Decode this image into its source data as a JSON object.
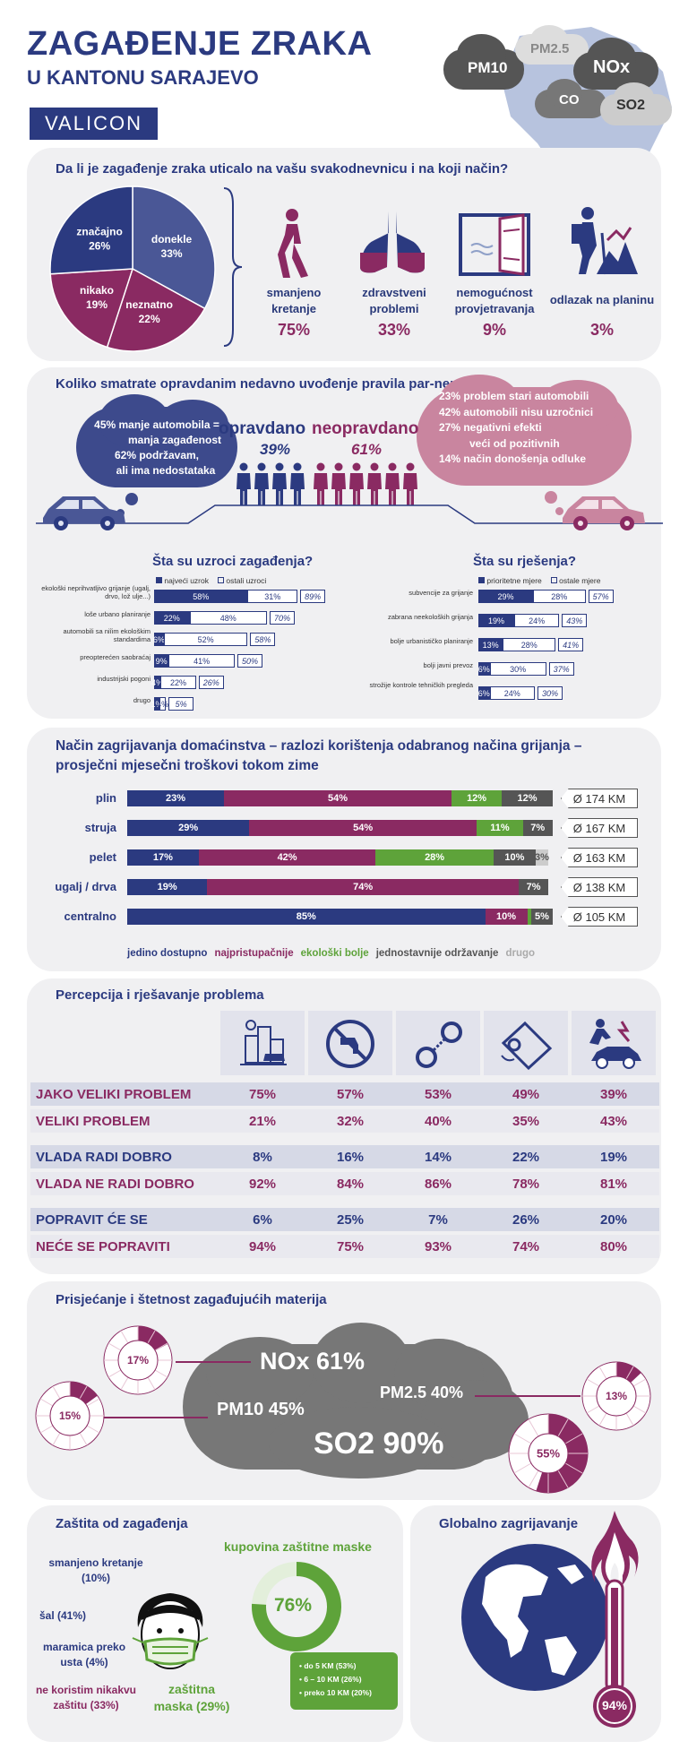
{
  "header": {
    "title": "ZAGAĐENJE ZRAKA",
    "subtitle": "U KANTONU SARAJEVO",
    "brand": "VALICON",
    "clouds": [
      "PM10",
      "PM2.5",
      "NOx",
      "CO",
      "SO2"
    ]
  },
  "colors": {
    "navy": "#2b3a80",
    "plum": "#8a2a62",
    "green": "#5ea33a",
    "grey": "#555555",
    "lightgrey": "#cccccc"
  },
  "impact": {
    "question": "Da li je zagađenje zraka uticalo na vašu svakodnevnicu i na koji način?",
    "pie": [
      {
        "label": "značajno",
        "pct": 26,
        "text": "26%"
      },
      {
        "label": "donekle",
        "pct": 33,
        "text": "33%"
      },
      {
        "label": "neznatno",
        "pct": 22,
        "text": "22%"
      },
      {
        "label": "nikako",
        "pct": 19,
        "text": "19%"
      }
    ],
    "effects": [
      {
        "icon": "walking-person-icon",
        "label": "smanjeno kretanje",
        "value": "75%"
      },
      {
        "icon": "lungs-icon",
        "label": "zdravstveni problemi",
        "value": "33%"
      },
      {
        "icon": "window-icon",
        "label": "nemogućnost provjetravanja",
        "value": "9%"
      },
      {
        "icon": "hiker-icon",
        "label": "odlazak na planinu",
        "value": "3%"
      }
    ]
  },
  "parnepar": {
    "question": "Koliko smatrate opravdanim nedavno uvođenje pravila par-nepar?",
    "left_lines": [
      "45% manje automobila =",
      "manja zagađenost",
      "62% podržavam,",
      "ali ima nedostataka"
    ],
    "right_lines": [
      "23% problem stari automobili",
      "42% automobili nisu uzročnici",
      "27% negativni efekti",
      "veći od pozitivnih",
      "14% način donošenja odluke"
    ],
    "opravdano": "opravdano",
    "opravdano_pct": "39%",
    "neopravdano": "neopravdano",
    "neopravdano_pct": "61%"
  },
  "causes": {
    "title": "Šta su uzroci zagađenja?",
    "legend_a": "najveći uzrok",
    "legend_b": "ostali uzroci",
    "rows": [
      {
        "label": "ekološki neprihvatljivo grijanje (ugalj, drvo, lož ulje...)",
        "a": 58,
        "b": 31,
        "total": "89%"
      },
      {
        "label": "loše urbano planiranje",
        "a": 22,
        "b": 48,
        "total": "70%"
      },
      {
        "label": "automobili sa niîim ekološkim standardima",
        "a": 6,
        "b": 52,
        "total": "58%"
      },
      {
        "label": "preopterećen saobraćaj",
        "a": 9,
        "b": 41,
        "total": "50%"
      },
      {
        "label": "industrijski pogoni",
        "a": 4,
        "b": 22,
        "total": "26%"
      },
      {
        "label": "drugo",
        "a": 1,
        "b": 4,
        "total": "5%"
      }
    ]
  },
  "solutions": {
    "title": "Šta su rješenja?",
    "legend_a": "prioritetne mjere",
    "legend_b": "ostale mjere",
    "rows": [
      {
        "label": "subvencije za grijanje",
        "a": 29,
        "b": 28,
        "total": "57%"
      },
      {
        "label": "zabrana neekoloških grijanja",
        "a": 19,
        "b": 24,
        "total": "43%"
      },
      {
        "label": "bolje urbanističko planiranje",
        "a": 13,
        "b": 28,
        "total": "41%"
      },
      {
        "label": "bolji javni prevoz",
        "a": 6,
        "b": 30,
        "total": "37%"
      },
      {
        "label": "strožije kontrole tehničkih pregleda",
        "a": 6,
        "b": 24,
        "total": "30%"
      }
    ]
  },
  "heating": {
    "title1": "Način zagrijavanja domaćinstva – razlozi korištenja odabranog načina grijanja –",
    "title2": "prosječni mjesečni troškovi tokom zime",
    "rows": [
      {
        "label": "plin",
        "segs": [
          23,
          54,
          12,
          12,
          0
        ],
        "cost": "Ø 174 KM"
      },
      {
        "label": "struja",
        "segs": [
          29,
          54,
          11,
          7,
          0
        ],
        "cost": "Ø 167 KM"
      },
      {
        "label": "pelet",
        "segs": [
          17,
          42,
          28,
          10,
          3
        ],
        "cost": "Ø 163 KM"
      },
      {
        "label": "ugalj / drva",
        "segs": [
          19,
          74,
          0,
          7,
          0
        ],
        "cost": "Ø 138 KM"
      },
      {
        "label": "centralno",
        "segs": [
          85,
          10,
          1,
          5,
          0
        ],
        "cost": "Ø 105 KM"
      }
    ],
    "legend": [
      "jedino dostupno",
      "najpristupačnije",
      "ekološki bolje",
      "jednostavnije održavanje",
      "drugo"
    ]
  },
  "perception": {
    "title": "Percepcija i rješavanje problema",
    "icons": [
      "city-smog-icon",
      "no-water-tap-icon",
      "handcuffs-icon",
      "wallet-icon",
      "car-accident-icon"
    ],
    "rows": [
      {
        "label": "JAKO VELIKI PROBLEM",
        "values": [
          "75%",
          "57%",
          "53%",
          "49%",
          "39%"
        ],
        "tone": "plum"
      },
      {
        "label": "VELIKI PROBLEM",
        "values": [
          "21%",
          "32%",
          "40%",
          "35%",
          "43%"
        ],
        "tone": "plum"
      },
      {
        "label": "VLADA RADI DOBRO",
        "values": [
          "8%",
          "16%",
          "14%",
          "22%",
          "19%"
        ],
        "tone": "navy"
      },
      {
        "label": "VLADA NE RADI DOBRO",
        "values": [
          "92%",
          "84%",
          "86%",
          "78%",
          "81%"
        ],
        "tone": "plum"
      },
      {
        "label": "POPRAVIT ĆE SE",
        "values": [
          "6%",
          "25%",
          "7%",
          "26%",
          "20%"
        ],
        "tone": "navy"
      },
      {
        "label": "NEĆE SE POPRAVITI",
        "values": [
          "94%",
          "75%",
          "93%",
          "74%",
          "80%"
        ],
        "tone": "plum"
      }
    ]
  },
  "pollutants": {
    "title": "Prisjećanje i štetnost zagađujućih materija",
    "items": [
      {
        "name": "NOx 61%",
        "donut": "17%",
        "frac": 0.17
      },
      {
        "name": "PM10 45%",
        "donut": "15%",
        "frac": 0.15
      },
      {
        "name": "PM2.5 40%",
        "donut": "13%",
        "frac": 0.13
      },
      {
        "name": "SO2 90%",
        "donut": "55%",
        "frac": 0.55
      }
    ]
  },
  "protection": {
    "title": "Zaštita od zagađenja",
    "items": [
      "smanjeno kretanje (10%)",
      "šal (41%)",
      "maramica preko usta (4%)",
      "ne koristim nikakvu zaštitu (33%)"
    ],
    "mask_label": "zaštitna maska (29%)",
    "buy_title": "kupovina zaštitne maske",
    "buy_pct": "76%",
    "buy_frac": 0.76,
    "buy_items": [
      "do 5 KM (53%)",
      "6 – 10 KM (26%)",
      "preko 10 KM (20%)"
    ]
  },
  "global": {
    "title": "Globalno zagrijavanje",
    "value": "94%"
  }
}
